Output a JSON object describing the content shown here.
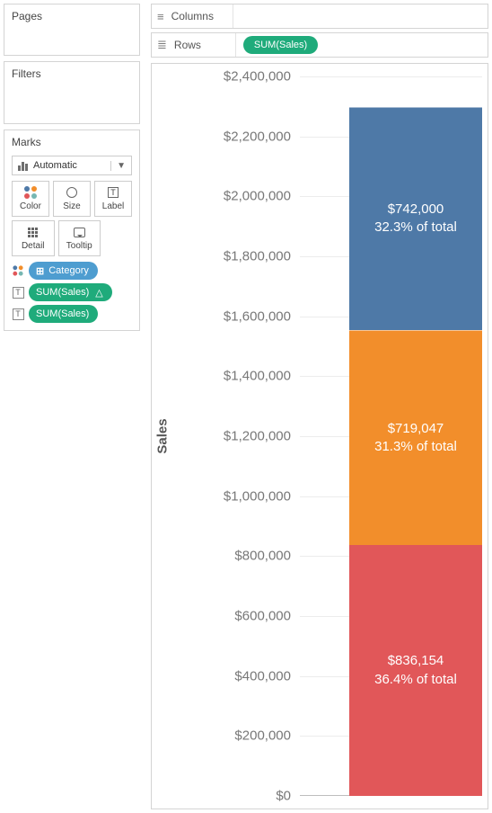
{
  "panels": {
    "pages": "Pages",
    "filters": "Filters",
    "marks": "Marks"
  },
  "marks": {
    "type_label": "Automatic",
    "buttons": {
      "color": "Color",
      "size": "Size",
      "label": "Label",
      "detail": "Detail",
      "tooltip": "Tooltip"
    },
    "pills": {
      "category": "Category",
      "sum1": "SUM(Sales)",
      "sum2": "SUM(Sales)"
    }
  },
  "shelves": {
    "columns": "Columns",
    "rows": "Rows",
    "rows_pill": "SUM(Sales)"
  },
  "chart": {
    "type": "stacked-bar",
    "y_axis_label": "Sales",
    "y_max": 2400000,
    "y_min": 0,
    "y_tick_step": 200000,
    "y_tick_labels": [
      "$0",
      "$200,000",
      "$400,000",
      "$600,000",
      "$800,000",
      "$1,000,000",
      "$1,200,000",
      "$1,400,000",
      "$1,600,000",
      "$1,800,000",
      "$2,000,000",
      "$2,200,000",
      "$2,400,000"
    ],
    "bar_top_value": 2297201,
    "segments": [
      {
        "value": 836154,
        "label1": "$836,154",
        "label2": "36.4% of total",
        "color": "#e15759"
      },
      {
        "value": 719047,
        "label1": "$719,047",
        "label2": "31.3% of total",
        "color": "#f28e2b"
      },
      {
        "value": 742000,
        "label1": "$742,000",
        "label2": "32.3% of total",
        "color": "#4e79a7"
      }
    ],
    "background": "#ffffff",
    "grid_color": "#ececec",
    "tick_font_size": 15,
    "tick_color": "#777777"
  }
}
